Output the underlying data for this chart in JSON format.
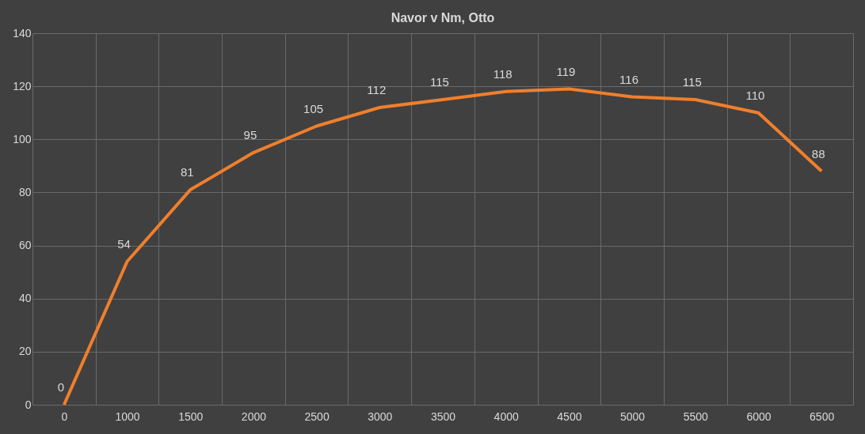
{
  "chart_data": {
    "type": "line",
    "title": "Navor v Nm, Otto",
    "categories": [
      "0",
      "1000",
      "1500",
      "2000",
      "2500",
      "3000",
      "3500",
      "4000",
      "4500",
      "5000",
      "5500",
      "6000",
      "6500"
    ],
    "series": [
      {
        "color": "#f07f2c",
        "values": [
          0,
          54,
          81,
          95,
          105,
          112,
          115,
          118,
          119,
          116,
          115,
          110,
          88
        ]
      }
    ],
    "ylim": [
      0,
      140
    ],
    "yticks": [
      0,
      20,
      40,
      60,
      80,
      100,
      120,
      140
    ],
    "grid": true,
    "data_labels": true,
    "legend": false,
    "marker": "none",
    "line_style": "solid"
  }
}
